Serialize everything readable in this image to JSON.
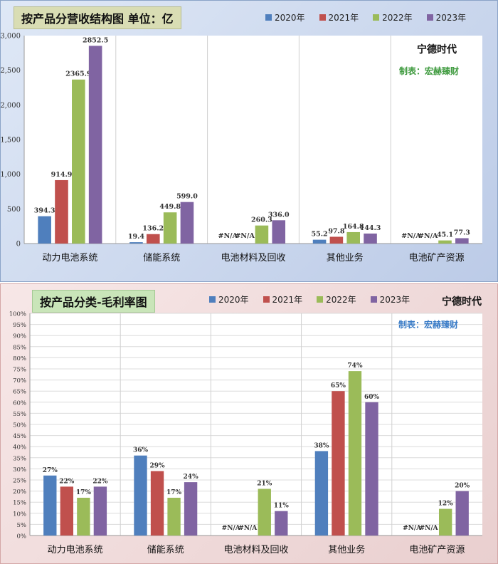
{
  "colors": {
    "y2020": "#4f7fbd",
    "y2021": "#c0504d",
    "y2022": "#9bbb59",
    "y2023": "#8064a2"
  },
  "top": {
    "title": "按产品分营收结构图 单位：亿",
    "brand": "宁德时代",
    "credit": "制表：宏赫臻财"
  },
  "bottom": {
    "title": "按产品分类-毛利率图",
    "brand": "宁德时代",
    "credit": "制表：宏赫臻财"
  },
  "chart_data": [
    {
      "type": "bar",
      "title": "按产品分营收结构图 单位：亿",
      "categories": [
        "动力电池系统",
        "储能系统",
        "电池材料及回收",
        "其他业务",
        "电池矿产资源"
      ],
      "series": [
        {
          "name": "2020年",
          "values": [
            394.3,
            19.4,
            null,
            55.2,
            null
          ],
          "labels": [
            "394.3",
            "19.4",
            "#N/A",
            "55.2",
            "#N/A"
          ]
        },
        {
          "name": "2021年",
          "values": [
            914.9,
            136.2,
            null,
            97.8,
            null
          ],
          "labels": [
            "914.9",
            "136.2",
            "#N/A",
            "97.8",
            "#N/A"
          ]
        },
        {
          "name": "2022年",
          "values": [
            2365.9,
            449.8,
            260.3,
            164.8,
            45.1
          ],
          "labels": [
            "2365.9",
            "449.8",
            "260.3",
            "164.8",
            "45.1"
          ]
        },
        {
          "name": "2023年",
          "values": [
            2852.5,
            599.0,
            336.0,
            144.3,
            77.3
          ],
          "labels": [
            "2852.5",
            "599.0",
            "336.0",
            "144.3",
            "77.3"
          ]
        }
      ],
      "ylim": [
        0,
        3000
      ],
      "yticks": [
        0,
        500,
        1000,
        1500,
        2000,
        2500,
        3000
      ],
      "ytick_labels": [
        "0",
        "500",
        "1,000",
        "1,500",
        "2,000",
        "2,500",
        "3,000"
      ],
      "legend": "top-right",
      "grid": "vertical"
    },
    {
      "type": "bar",
      "title": "按产品分类-毛利率图",
      "categories": [
        "动力电池系统",
        "储能系统",
        "电池材料及回收",
        "其他业务",
        "电池矿产资源"
      ],
      "series": [
        {
          "name": "2020年",
          "values": [
            27,
            36,
            null,
            38,
            null
          ],
          "labels": [
            "27%",
            "36%",
            "#N/A",
            "38%",
            "#N/A"
          ]
        },
        {
          "name": "2021年",
          "values": [
            22,
            29,
            null,
            65,
            null
          ],
          "labels": [
            "22%",
            "29%",
            "#N/A",
            "65%",
            "#N/A"
          ]
        },
        {
          "name": "2022年",
          "values": [
            17,
            17,
            21,
            74,
            12
          ],
          "labels": [
            "17%",
            "17%",
            "21%",
            "74%",
            "12%"
          ]
        },
        {
          "name": "2023年",
          "values": [
            22,
            24,
            11,
            60,
            20
          ],
          "labels": [
            "22%",
            "24%",
            "11%",
            "60%",
            "20%"
          ]
        }
      ],
      "ylim": [
        0,
        100
      ],
      "yticks": [
        0,
        5,
        10,
        15,
        20,
        25,
        30,
        35,
        40,
        45,
        50,
        55,
        60,
        65,
        70,
        75,
        80,
        85,
        90,
        95,
        100
      ],
      "ytick_labels": [
        "0%",
        "5%",
        "10%",
        "15%",
        "20%",
        "25%",
        "30%",
        "35%",
        "40%",
        "45%",
        "50%",
        "55%",
        "60%",
        "65%",
        "70%",
        "75%",
        "80%",
        "85%",
        "90%",
        "95%",
        "100%"
      ],
      "legend": "top-right",
      "grid": "both"
    }
  ]
}
